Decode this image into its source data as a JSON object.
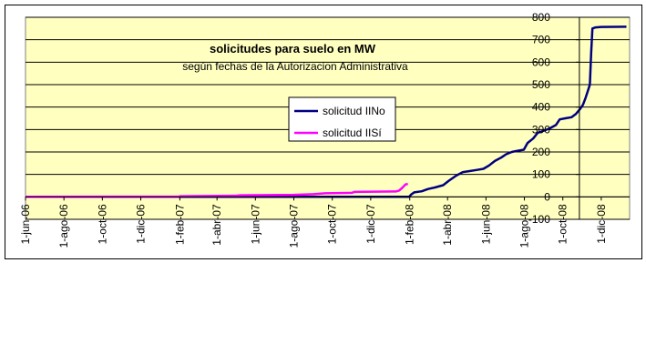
{
  "chart_data": {
    "type": "line",
    "title": "solicitudes para suelo en MW",
    "subtitle": "según fechas de la Autorizacion Administrativa",
    "xlabel": "",
    "ylabel": "",
    "x_tick_labels": [
      "1-jun-06",
      "1-ago-06",
      "1-oct-06",
      "1-dic-06",
      "1-feb-07",
      "1-abr-07",
      "1-jun-07",
      "1-ago-07",
      "1-oct-07",
      "1-dic-07",
      "1-feb-08",
      "1-abr-08",
      "1-jun-08",
      "1-ago-08",
      "1-oct-08",
      "1-dic-08"
    ],
    "x_tick_values": [
      "2006-06-01",
      "2006-08-01",
      "2006-10-01",
      "2006-12-01",
      "2007-02-01",
      "2007-04-01",
      "2007-06-01",
      "2007-08-01",
      "2007-10-01",
      "2007-12-01",
      "2008-02-01",
      "2008-04-01",
      "2008-06-01",
      "2008-08-01",
      "2008-10-01",
      "2008-12-01"
    ],
    "xlim": [
      "2006-06-01",
      "2009-01-15"
    ],
    "y_ticks": [
      800,
      700,
      600,
      500,
      400,
      300,
      200,
      100,
      0,
      -100
    ],
    "ylim": [
      -100,
      800
    ],
    "grid": "horizontal",
    "legend_position": "center",
    "series": [
      {
        "name": "solicitud IINo",
        "color": "#000080",
        "points": [
          [
            "2006-06-01",
            0
          ],
          [
            "2008-01-31",
            0
          ],
          [
            "2008-02-03",
            10
          ],
          [
            "2008-02-08",
            20
          ],
          [
            "2008-02-20",
            25
          ],
          [
            "2008-03-01",
            35
          ],
          [
            "2008-03-12",
            42
          ],
          [
            "2008-03-25",
            52
          ],
          [
            "2008-04-03",
            72
          ],
          [
            "2008-04-15",
            95
          ],
          [
            "2008-04-25",
            110
          ],
          [
            "2008-05-06",
            115
          ],
          [
            "2008-05-18",
            120
          ],
          [
            "2008-05-28",
            125
          ],
          [
            "2008-06-06",
            140
          ],
          [
            "2008-06-15",
            160
          ],
          [
            "2008-06-25",
            175
          ],
          [
            "2008-07-03",
            190
          ],
          [
            "2008-07-12",
            200
          ],
          [
            "2008-07-20",
            205
          ],
          [
            "2008-07-31",
            210
          ],
          [
            "2008-08-06",
            240
          ],
          [
            "2008-08-15",
            260
          ],
          [
            "2008-08-22",
            285
          ],
          [
            "2008-09-01",
            295
          ],
          [
            "2008-09-10",
            305
          ],
          [
            "2008-09-20",
            320
          ],
          [
            "2008-09-26",
            345
          ],
          [
            "2008-10-05",
            350
          ],
          [
            "2008-10-15",
            355
          ],
          [
            "2008-10-22",
            370
          ],
          [
            "2008-10-28",
            390
          ],
          [
            "2008-11-02",
            410
          ],
          [
            "2008-11-06",
            440
          ],
          [
            "2008-11-10",
            475
          ],
          [
            "2008-11-13",
            500
          ],
          [
            "2008-11-15",
            640
          ],
          [
            "2008-11-17",
            750
          ],
          [
            "2008-11-22",
            755
          ],
          [
            "2008-12-01",
            757
          ],
          [
            "2009-01-10",
            758
          ]
        ]
      },
      {
        "name": "solicitud IISí",
        "color": "#ff00ff",
        "points": [
          [
            "2006-06-01",
            0
          ],
          [
            "2007-01-31",
            1
          ],
          [
            "2007-02-01",
            3
          ],
          [
            "2007-05-01",
            5
          ],
          [
            "2007-05-08",
            7
          ],
          [
            "2007-08-01",
            9
          ],
          [
            "2007-09-01",
            12
          ],
          [
            "2007-09-20",
            16
          ],
          [
            "2007-11-01",
            18
          ],
          [
            "2007-11-05",
            22
          ],
          [
            "2008-01-10",
            24
          ],
          [
            "2008-01-15",
            28
          ],
          [
            "2008-01-20",
            40
          ],
          [
            "2008-01-25",
            55
          ],
          [
            "2008-01-29",
            58
          ]
        ]
      }
    ]
  }
}
